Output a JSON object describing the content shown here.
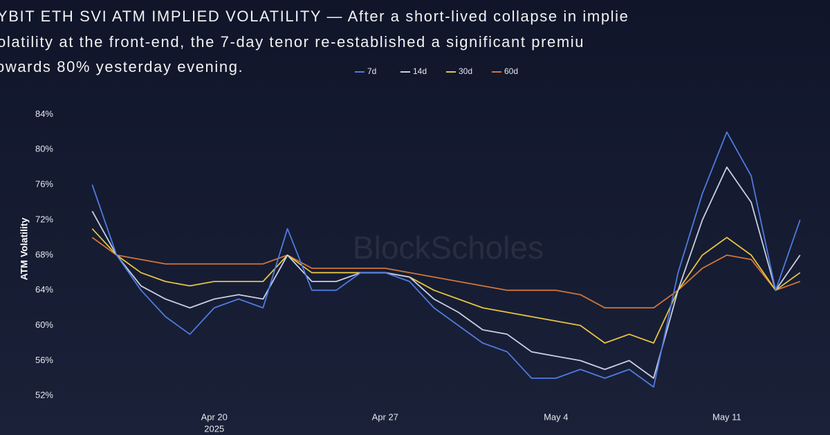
{
  "chart_data": {
    "type": "line",
    "title_lines": [
      "YBIT ETH SVI ATM IMPLIED VOLATILITY — After a short-lived collapse in implie",
      "olatility  at the front-end, the 7-day tenor re-established a significant premiu",
      "owards 80% yesterday evening."
    ],
    "watermark": "BlockScholes",
    "y_label": "ATM Volatility",
    "x": [
      "2025-04-15",
      "2025-04-16",
      "2025-04-17",
      "2025-04-18",
      "2025-04-19",
      "2025-04-20",
      "2025-04-21",
      "2025-04-22",
      "2025-04-23",
      "2025-04-24",
      "2025-04-25",
      "2025-04-26",
      "2025-04-27",
      "2025-04-28",
      "2025-04-29",
      "2025-04-30",
      "2025-05-01",
      "2025-05-02",
      "2025-05-03",
      "2025-05-04",
      "2025-05-05",
      "2025-05-06",
      "2025-05-07",
      "2025-05-08",
      "2025-05-09",
      "2025-05-10",
      "2025-05-11",
      "2025-05-12",
      "2025-05-13",
      "2025-05-14"
    ],
    "series": [
      {
        "name": "7d",
        "color": "#4f7be0",
        "values": [
          76,
          68,
          64,
          61,
          59,
          62,
          63,
          62,
          71,
          64,
          64,
          66,
          66,
          65,
          62,
          60,
          58,
          57,
          54,
          54,
          55,
          54,
          55,
          53,
          66,
          75,
          82,
          77,
          64,
          72
        ]
      },
      {
        "name": "14d",
        "color": "#c8cfe6",
        "values": [
          73,
          68,
          64.5,
          63,
          62,
          63,
          63.5,
          63,
          68,
          65,
          65,
          66,
          66,
          65.5,
          63,
          61.5,
          59.5,
          59,
          57,
          56.5,
          56,
          55,
          56,
          54,
          64,
          72,
          78,
          74,
          64,
          68
        ]
      },
      {
        "name": "30d",
        "color": "#e6c443",
        "values": [
          71,
          68,
          66,
          65,
          64.5,
          65,
          65,
          65,
          68,
          66,
          66,
          66,
          66,
          65.5,
          64,
          63,
          62,
          61.5,
          61,
          60.5,
          60,
          58,
          59,
          58,
          64,
          68,
          70,
          68,
          64,
          66
        ]
      },
      {
        "name": "60d",
        "color": "#d2753a",
        "values": [
          70,
          68,
          67.5,
          67,
          67,
          67,
          67,
          67,
          68,
          66.5,
          66.5,
          66.5,
          66.5,
          66,
          65.5,
          65,
          64.5,
          64,
          64,
          64,
          63.5,
          62,
          62,
          62,
          64,
          66.5,
          68,
          67.5,
          64,
          65
        ]
      }
    ],
    "xlim": [
      "2025-04-14",
      "2025-05-15"
    ],
    "xticks": [
      {
        "value": "2025-04-20",
        "label": "Apr 20"
      },
      {
        "value": "2025-04-27",
        "label": "Apr 27"
      },
      {
        "value": "2025-05-04",
        "label": "May 4"
      },
      {
        "value": "2025-05-11",
        "label": "May 11"
      }
    ],
    "x_year_label": "2025",
    "ylim": [
      51,
      86
    ],
    "yticks": [
      {
        "value": 52,
        "label": "52%"
      },
      {
        "value": 56,
        "label": "56%"
      },
      {
        "value": 60,
        "label": "60%"
      },
      {
        "value": 64,
        "label": "64%"
      },
      {
        "value": 68,
        "label": "68%"
      },
      {
        "value": 72,
        "label": "72%"
      },
      {
        "value": 76,
        "label": "76%"
      },
      {
        "value": 80,
        "label": "80%"
      },
      {
        "value": 84,
        "label": "84%"
      }
    ],
    "grid": false
  }
}
